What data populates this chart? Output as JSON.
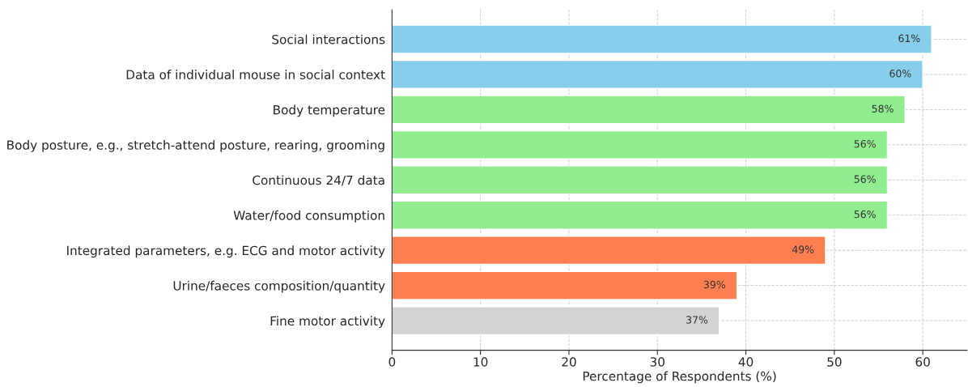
{
  "chart_data": {
    "type": "bar",
    "orientation": "horizontal",
    "xlabel": "Percentage of Respondents (%)",
    "categories": [
      "Social interactions",
      "Data of individual mouse in social context",
      "Body temperature",
      "Body posture, e.g., stretch-attend posture, rearing, grooming",
      "Continuous 24/7 data",
      "Water/food consumption",
      "Integrated parameters, e.g. ECG and motor activity",
      "Urine/faeces composition/quantity",
      "Fine motor activity"
    ],
    "values": [
      61,
      60,
      58,
      56,
      56,
      56,
      49,
      39,
      37
    ],
    "colors": [
      "#87ceeb",
      "#87ceeb",
      "#90ee90",
      "#90ee90",
      "#90ee90",
      "#90ee90",
      "#ff7f50",
      "#ff7f50",
      "#d3d3d3"
    ],
    "value_labels": [
      "61%",
      "60%",
      "58%",
      "56%",
      "56%",
      "56%",
      "49%",
      "39%",
      "37%"
    ],
    "xlim": [
      0,
      65
    ],
    "xticks": [
      0,
      10,
      20,
      30,
      40,
      50,
      60
    ],
    "grid": true
  }
}
